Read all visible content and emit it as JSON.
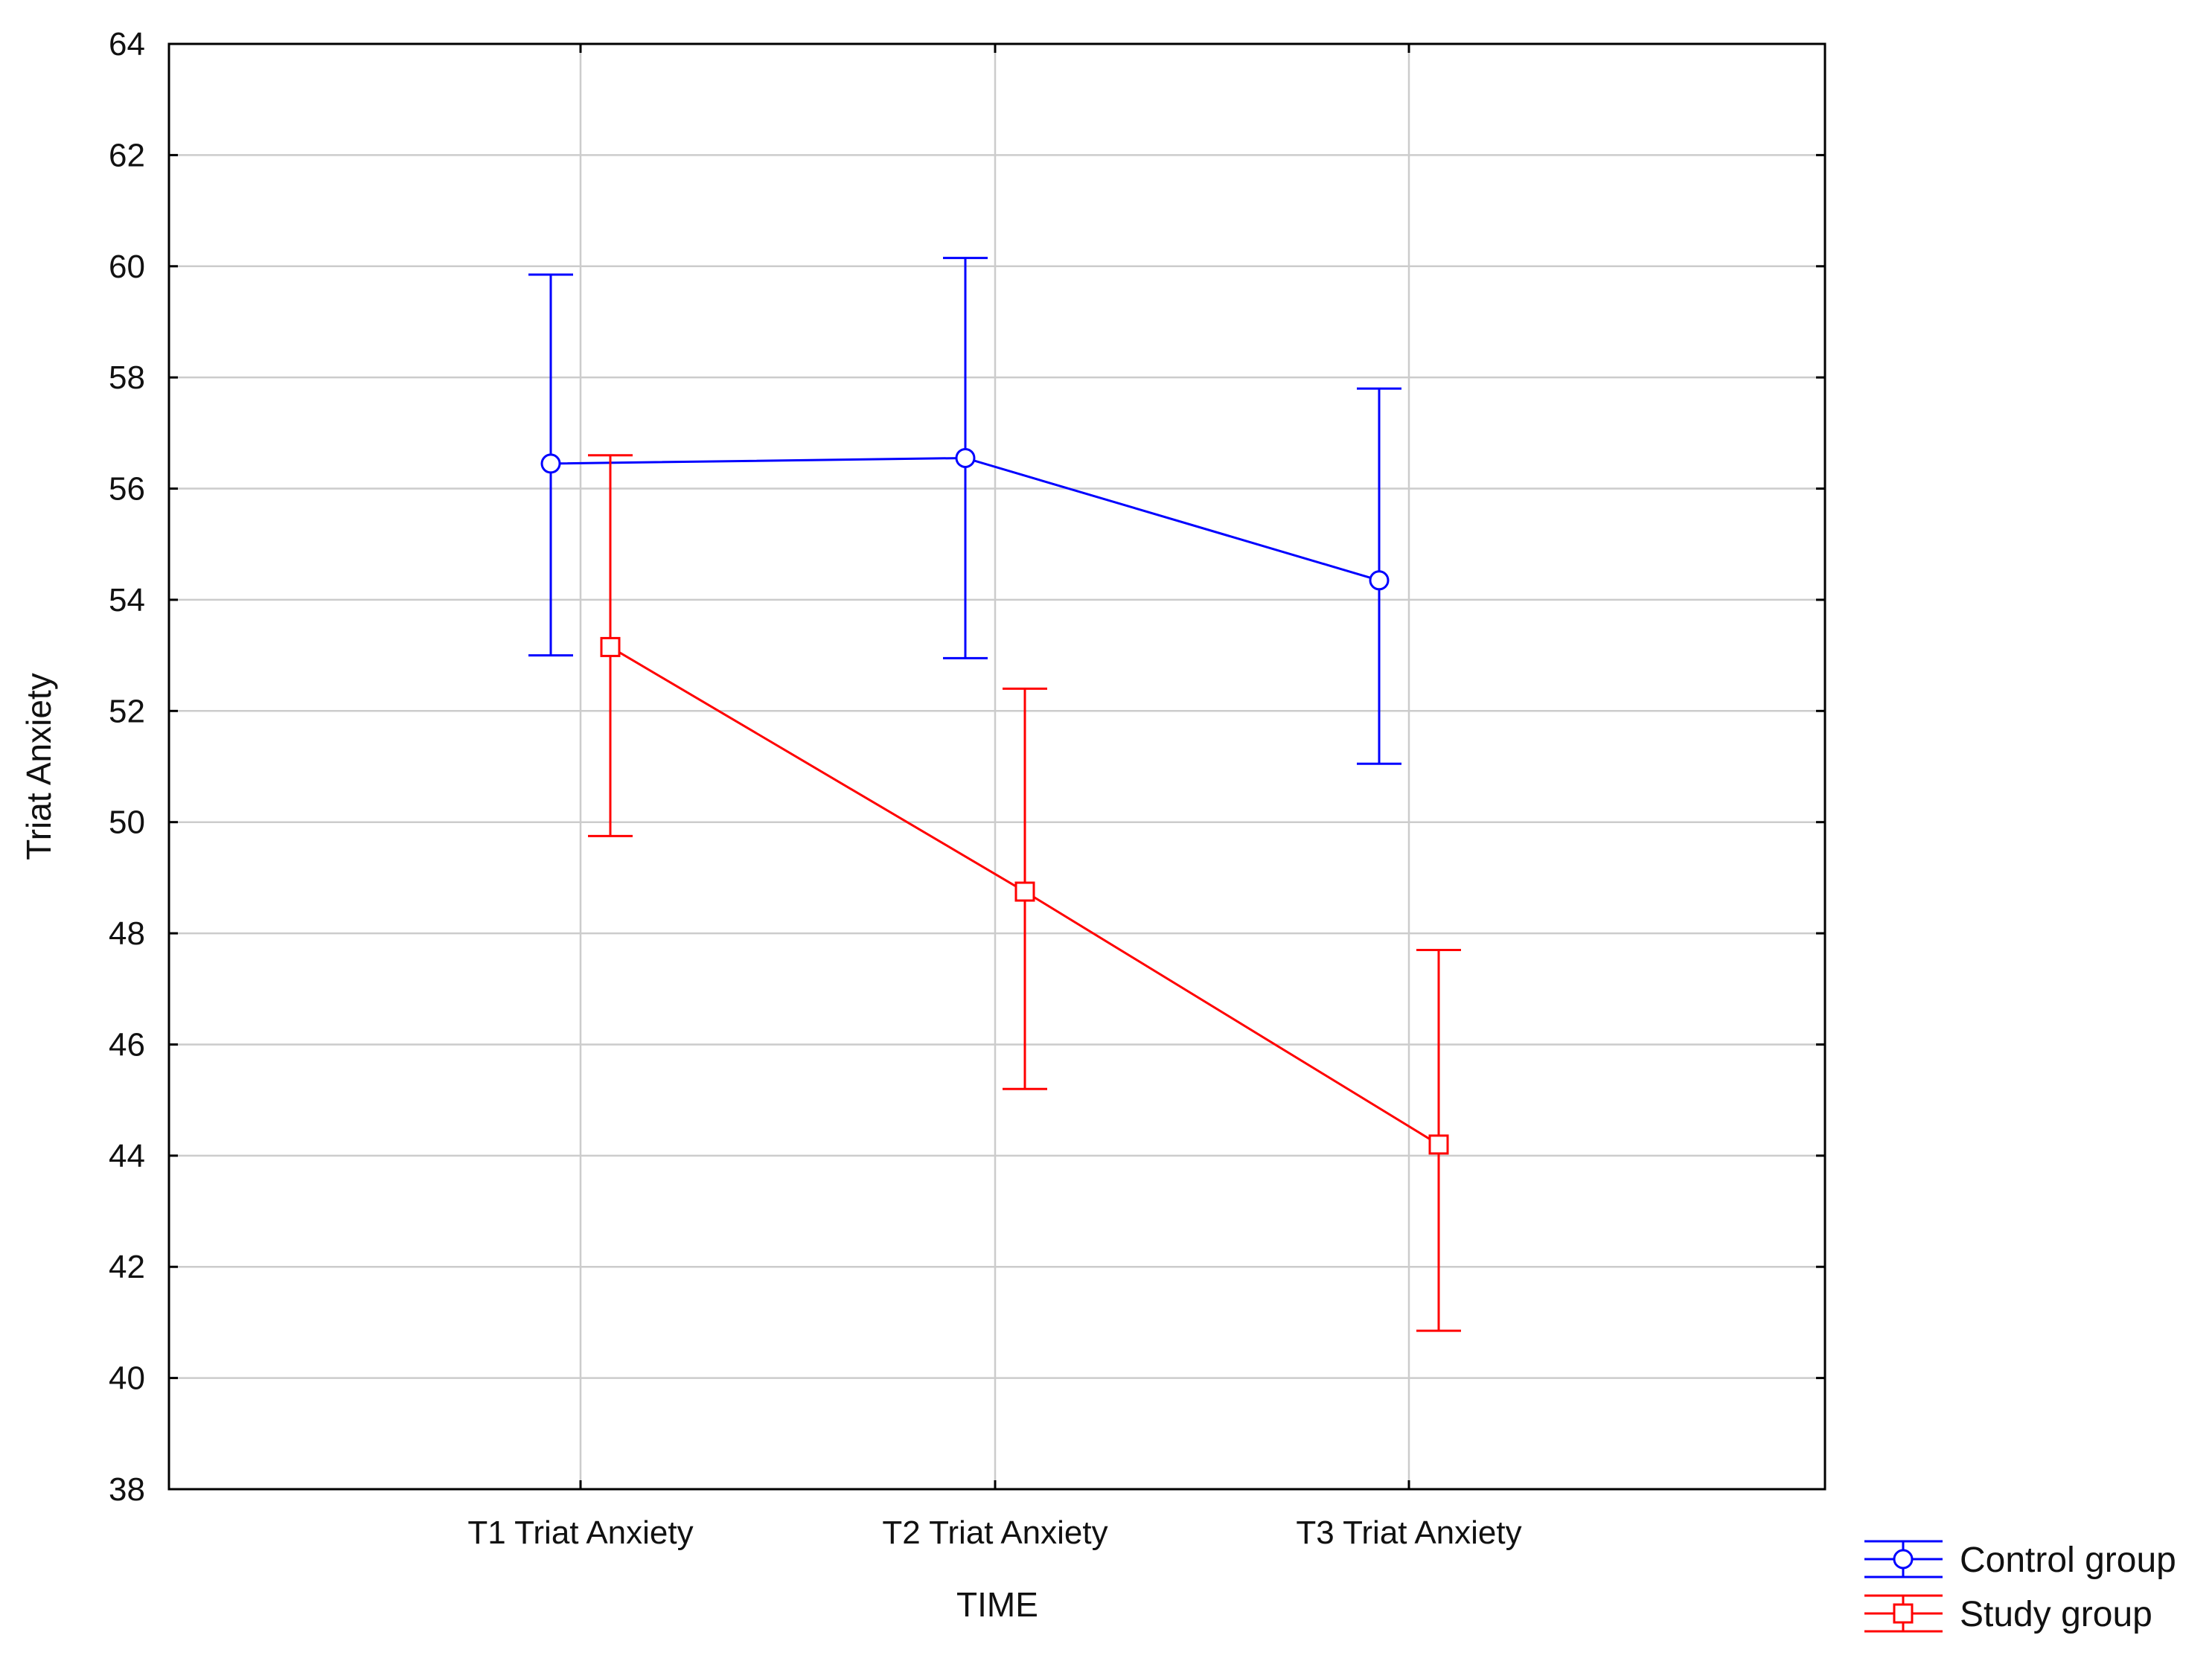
{
  "chart_data": {
    "type": "line",
    "title": "",
    "xlabel": "TIME",
    "ylabel": "Triat Anxiety",
    "categories": [
      "T1 Triat Anxiety",
      "T2 Triat Anxiety",
      "T3 Triat Anxiety"
    ],
    "ylim": [
      38,
      64
    ],
    "yticks": [
      "38",
      "40",
      "42",
      "44",
      "46",
      "48",
      "50",
      "52",
      "54",
      "56",
      "58",
      "60",
      "62",
      "64"
    ],
    "grid": true,
    "legend_position": "bottom-right outside",
    "series": [
      {
        "name": "Control group",
        "color": "#0000ff",
        "marker": "circle",
        "values": [
          56.45,
          56.55,
          54.35
        ],
        "lower": [
          53.0,
          52.95,
          51.05
        ],
        "upper": [
          59.85,
          60.15,
          57.8
        ]
      },
      {
        "name": "Study group",
        "color": "#ff0000",
        "marker": "square",
        "values": [
          53.15,
          48.75,
          44.2
        ],
        "lower": [
          49.75,
          45.2,
          40.85
        ],
        "upper": [
          56.6,
          52.4,
          47.7
        ]
      }
    ]
  }
}
